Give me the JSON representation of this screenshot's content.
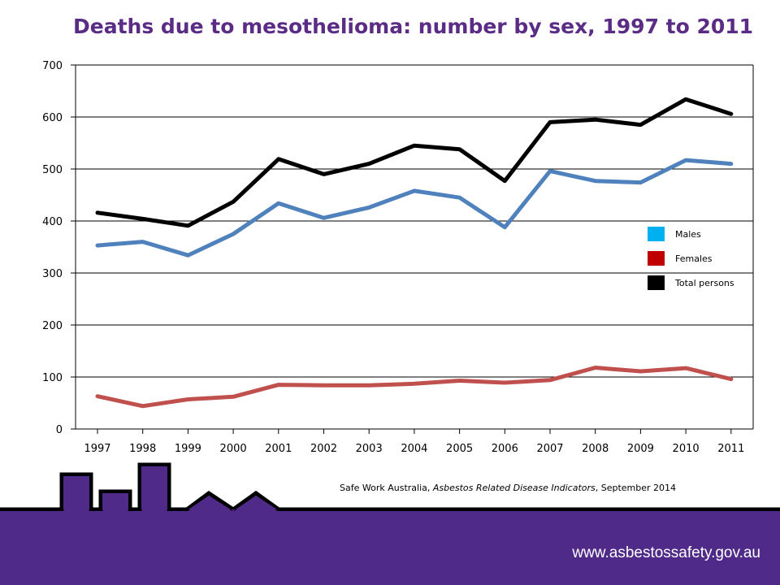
{
  "title": "Deaths due to mesothelioma: number by sex, 1997 to 2011",
  "source": {
    "prefix": "Safe Work Australia, ",
    "italic": "Asbestos Related Disease Indicators",
    "suffix": ", September 2014"
  },
  "footer_url": "www.asbestossafety.gov.au",
  "colors": {
    "title": "#5a2c86",
    "footer": "#4f2a88",
    "males_line": "#4f81bd",
    "females_line": "#c0504d",
    "total_line": "#000000",
    "males_legend": "#00b0f0",
    "females_legend": "#c00000",
    "total_legend": "#000000"
  },
  "chart_data": {
    "type": "line",
    "title": "Deaths due to mesothelioma: number by sex, 1997 to 2011",
    "xlabel": "",
    "ylabel": "",
    "categories": [
      "1997",
      "1998",
      "1999",
      "2000",
      "2001",
      "2002",
      "2003",
      "2004",
      "2005",
      "2006",
      "2007",
      "2008",
      "2009",
      "2010",
      "2011"
    ],
    "ylim": [
      0,
      700
    ],
    "yticks": [
      0,
      100,
      200,
      300,
      400,
      500,
      600,
      700
    ],
    "grid": true,
    "legend_position": "right",
    "series": [
      {
        "name": "Males",
        "key": "males",
        "values": [
          353,
          360,
          334,
          375,
          434,
          406,
          426,
          458,
          445,
          388,
          496,
          477,
          474,
          517,
          510
        ]
      },
      {
        "name": "Females",
        "key": "females",
        "values": [
          63,
          44,
          57,
          62,
          85,
          84,
          84,
          87,
          93,
          89,
          94,
          118,
          111,
          117,
          96
        ]
      },
      {
        "name": "Total persons",
        "key": "total",
        "values": [
          416,
          404,
          391,
          437,
          519,
          490,
          510,
          545,
          538,
          477,
          590,
          595,
          585,
          634,
          606
        ]
      }
    ]
  }
}
